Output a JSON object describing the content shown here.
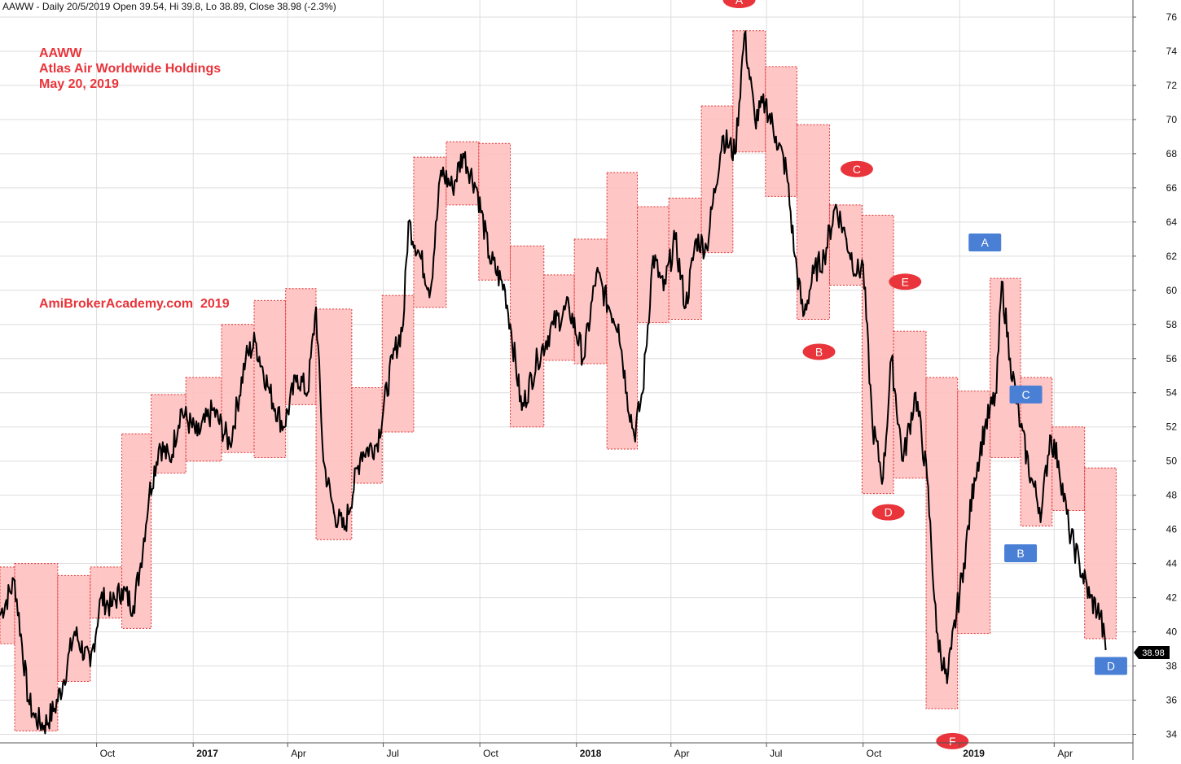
{
  "header": {
    "text": "AAWW - Daily 20/5/2019 Open 39.54, Hi 39.8, Lo 38.89, Close 38.98 (-2.3%)"
  },
  "title": {
    "line1": "AAWW",
    "line2": "Atlas Air Worldwide Holdings",
    "line3": "May 20, 2019",
    "watermark": "AmiBrokerAcademy.com  2019"
  },
  "last_price_label": "38.98",
  "colors": {
    "price_bars": "#000000",
    "box_fill": "#ffc0c0",
    "box_border": "#e03030",
    "red_marker": "#e8343a",
    "blue_marker": "#4a7fd6",
    "title_text": "#e8343a",
    "grid": "#dddddd"
  },
  "chart_data": {
    "type": "line",
    "symbol": "AAWW",
    "x_axis": {
      "start_date": "2016-07-01",
      "end_date": "2019-06-15",
      "tick_labels": [
        {
          "label": "Oct",
          "date": "2016-10-01",
          "bold": false
        },
        {
          "label": "2017",
          "date": "2017-01-01",
          "bold": true
        },
        {
          "label": "Apr",
          "date": "2017-04-01",
          "bold": false
        },
        {
          "label": "Jul",
          "date": "2017-07-01",
          "bold": false
        },
        {
          "label": "Oct",
          "date": "2017-10-01",
          "bold": false
        },
        {
          "label": "2018",
          "date": "2018-01-01",
          "bold": true
        },
        {
          "label": "Apr",
          "date": "2018-04-01",
          "bold": false
        },
        {
          "label": "Jul",
          "date": "2018-07-01",
          "bold": false
        },
        {
          "label": "Oct",
          "date": "2018-10-01",
          "bold": false
        },
        {
          "label": "2019",
          "date": "2019-01-01",
          "bold": true
        },
        {
          "label": "Apr",
          "date": "2019-04-01",
          "bold": false
        }
      ]
    },
    "y_axis": {
      "ylim": [
        33.5,
        77
      ],
      "ticks": [
        34,
        36,
        38,
        40,
        42,
        44,
        46,
        48,
        50,
        52,
        54,
        56,
        58,
        60,
        62,
        64,
        66,
        68,
        70,
        72,
        74,
        76
      ],
      "position": "right"
    },
    "grid": true,
    "series": [
      {
        "x": [
          "2016-07-01",
          "2016-07-15",
          "2016-07-28",
          "2016-08-03",
          "2016-08-12",
          "2016-08-22",
          "2016-08-30",
          "2016-09-10",
          "2016-09-25",
          "2016-10-05",
          "2016-10-15",
          "2016-10-25",
          "2016-11-05",
          "2016-11-12",
          "2016-11-20",
          "2016-11-30",
          "2016-12-10",
          "2016-12-20",
          "2017-01-05",
          "2017-01-20",
          "2017-02-05",
          "2017-02-20",
          "2017-03-01",
          "2017-03-15",
          "2017-03-28",
          "2017-04-10",
          "2017-04-20",
          "2017-04-28",
          "2017-05-05",
          "2017-05-15",
          "2017-05-25",
          "2017-06-10",
          "2017-06-25",
          "2017-07-10",
          "2017-07-20",
          "2017-07-25",
          "2017-08-05",
          "2017-08-15",
          "2017-08-25",
          "2017-09-05",
          "2017-09-15",
          "2017-09-28",
          "2017-10-10",
          "2017-10-25",
          "2017-10-30",
          "2017-11-10",
          "2017-11-25",
          "2017-12-10",
          "2017-12-25",
          "2018-01-08",
          "2018-01-20",
          "2018-02-01",
          "2018-02-10",
          "2018-02-18",
          "2018-02-25",
          "2018-03-05",
          "2018-03-15",
          "2018-03-25",
          "2018-04-05",
          "2018-04-15",
          "2018-04-25",
          "2018-05-05",
          "2018-05-20",
          "2018-06-01",
          "2018-06-10",
          "2018-06-20",
          "2018-06-30",
          "2018-07-10",
          "2018-07-20",
          "2018-07-28",
          "2018-08-05",
          "2018-08-15",
          "2018-08-25",
          "2018-09-05",
          "2018-09-15",
          "2018-09-25",
          "2018-10-01",
          "2018-10-10",
          "2018-10-20",
          "2018-10-28",
          "2018-11-08",
          "2018-11-20",
          "2018-12-01",
          "2018-12-10",
          "2018-12-20",
          "2018-12-24",
          "2019-01-05",
          "2019-01-15",
          "2019-01-25",
          "2019-02-05",
          "2019-02-10",
          "2019-02-18",
          "2019-02-28",
          "2019-03-10",
          "2019-03-20",
          "2019-03-28",
          "2019-04-05",
          "2019-04-15",
          "2019-04-25",
          "2019-05-05",
          "2019-05-15",
          "2019-05-20"
        ],
        "y": [
          41.0,
          43.0,
          36.0,
          35.0,
          34.5,
          35.5,
          37.0,
          40.0,
          38.0,
          42.0,
          41.5,
          42.5,
          41.5,
          44.0,
          48.0,
          51.0,
          50.0,
          53.0,
          51.5,
          53.0,
          51.0,
          56.0,
          57.0,
          54.0,
          52.0,
          55.0,
          54.0,
          59.0,
          50.0,
          47.0,
          46.0,
          50.5,
          51.0,
          56.0,
          58.0,
          64.0,
          62.0,
          60.0,
          67.0,
          66.0,
          68.0,
          66.0,
          62.0,
          60.0,
          58.0,
          53.0,
          56.0,
          58.0,
          59.0,
          56.0,
          61.0,
          59.0,
          58.0,
          54.0,
          51.5,
          54.0,
          62.0,
          60.0,
          63.0,
          59.0,
          63.0,
          62.5,
          69.0,
          68.0,
          75.0,
          70.0,
          71.0,
          69.0,
          67.0,
          62.0,
          58.5,
          61.0,
          62.0,
          65.0,
          63.0,
          61.0,
          61.5,
          52.0,
          49.0,
          56.0,
          50.0,
          54.0,
          49.0,
          40.0,
          37.0,
          39.0,
          44.0,
          49.0,
          52.0,
          54.0,
          60.5,
          56.0,
          52.0,
          49.0,
          47.0,
          51.5,
          50.0,
          46.0,
          44.0,
          42.0,
          41.0,
          38.98
        ]
      }
    ],
    "boxes": [
      {
        "start": "2016-07-01",
        "end": "2016-07-15",
        "low": 39.3,
        "high": 43.8
      },
      {
        "start": "2016-07-15",
        "end": "2016-08-25",
        "low": 34.2,
        "high": 44.0
      },
      {
        "start": "2016-08-25",
        "end": "2016-09-25",
        "low": 37.1,
        "high": 43.3
      },
      {
        "start": "2016-09-25",
        "end": "2016-10-25",
        "low": 40.8,
        "high": 43.8
      },
      {
        "start": "2016-10-25",
        "end": "2016-11-22",
        "low": 40.2,
        "high": 51.6
      },
      {
        "start": "2016-11-22",
        "end": "2016-12-25",
        "low": 49.3,
        "high": 53.9
      },
      {
        "start": "2016-12-25",
        "end": "2017-01-28",
        "low": 50.0,
        "high": 54.9
      },
      {
        "start": "2017-01-28",
        "end": "2017-02-28",
        "low": 50.5,
        "high": 58.0
      },
      {
        "start": "2017-02-28",
        "end": "2017-03-30",
        "low": 50.2,
        "high": 59.4
      },
      {
        "start": "2017-03-30",
        "end": "2017-04-28",
        "low": 53.3,
        "high": 60.1
      },
      {
        "start": "2017-04-28",
        "end": "2017-06-01",
        "low": 45.4,
        "high": 58.9
      },
      {
        "start": "2017-06-01",
        "end": "2017-06-30",
        "low": 48.7,
        "high": 54.3
      },
      {
        "start": "2017-06-30",
        "end": "2017-07-30",
        "low": 51.7,
        "high": 59.7
      },
      {
        "start": "2017-07-30",
        "end": "2017-08-30",
        "low": 59.0,
        "high": 67.8
      },
      {
        "start": "2017-08-30",
        "end": "2017-09-30",
        "low": 65.0,
        "high": 68.7
      },
      {
        "start": "2017-09-30",
        "end": "2017-10-30",
        "low": 60.6,
        "high": 68.6
      },
      {
        "start": "2017-10-30",
        "end": "2017-12-01",
        "low": 52.0,
        "high": 62.6
      },
      {
        "start": "2017-12-01",
        "end": "2017-12-30",
        "low": 55.9,
        "high": 60.9
      },
      {
        "start": "2017-12-30",
        "end": "2018-01-30",
        "low": 55.7,
        "high": 63.0
      },
      {
        "start": "2018-01-30",
        "end": "2018-02-28",
        "low": 50.7,
        "high": 66.9
      },
      {
        "start": "2018-02-28",
        "end": "2018-03-30",
        "low": 58.1,
        "high": 64.9
      },
      {
        "start": "2018-03-30",
        "end": "2018-04-30",
        "low": 58.3,
        "high": 65.4
      },
      {
        "start": "2018-04-30",
        "end": "2018-05-30",
        "low": 62.2,
        "high": 70.8
      },
      {
        "start": "2018-05-30",
        "end": "2018-06-30",
        "low": 68.1,
        "high": 75.2
      },
      {
        "start": "2018-06-30",
        "end": "2018-07-30",
        "low": 65.5,
        "high": 73.1
      },
      {
        "start": "2018-07-30",
        "end": "2018-08-30",
        "low": 58.3,
        "high": 69.7
      },
      {
        "start": "2018-08-30",
        "end": "2018-09-30",
        "low": 60.3,
        "high": 65.0
      },
      {
        "start": "2018-09-30",
        "end": "2018-10-30",
        "low": 48.1,
        "high": 64.4
      },
      {
        "start": "2018-10-30",
        "end": "2018-11-30",
        "low": 49.0,
        "high": 57.6
      },
      {
        "start": "2018-11-30",
        "end": "2018-12-30",
        "low": 35.5,
        "high": 54.9
      },
      {
        "start": "2018-12-30",
        "end": "2019-01-30",
        "low": 39.9,
        "high": 54.1
      },
      {
        "start": "2019-01-30",
        "end": "2019-02-28",
        "low": 50.2,
        "high": 60.7
      },
      {
        "start": "2019-02-28",
        "end": "2019-03-30",
        "low": 46.2,
        "high": 54.9
      },
      {
        "start": "2019-03-30",
        "end": "2019-04-30",
        "low": 47.1,
        "high": 52.0
      },
      {
        "start": "2019-04-30",
        "end": "2019-05-30",
        "low": 39.6,
        "high": 49.6
      }
    ],
    "annotations": [
      {
        "label": "A",
        "style": "red-ellipse",
        "date": "2018-06-05",
        "price": 77.0
      },
      {
        "label": "B",
        "style": "red-ellipse",
        "date": "2018-08-20",
        "price": 56.4
      },
      {
        "label": "C",
        "style": "red-ellipse",
        "date": "2018-09-25",
        "price": 67.1
      },
      {
        "label": "D",
        "style": "red-ellipse",
        "date": "2018-10-25",
        "price": 47.0
      },
      {
        "label": "E",
        "style": "red-ellipse",
        "date": "2018-11-10",
        "price": 60.5
      },
      {
        "label": "F",
        "style": "red-ellipse",
        "date": "2018-12-25",
        "price": 33.6
      },
      {
        "label": "A",
        "style": "blue-rect",
        "date": "2019-01-25",
        "price": 62.8
      },
      {
        "label": "C",
        "style": "blue-rect",
        "date": "2019-03-05",
        "price": 53.9
      },
      {
        "label": "B",
        "style": "blue-rect",
        "date": "2019-02-28",
        "price": 44.6
      },
      {
        "label": "D",
        "style": "blue-rect",
        "date": "2019-05-25",
        "price": 38.0
      }
    ]
  }
}
